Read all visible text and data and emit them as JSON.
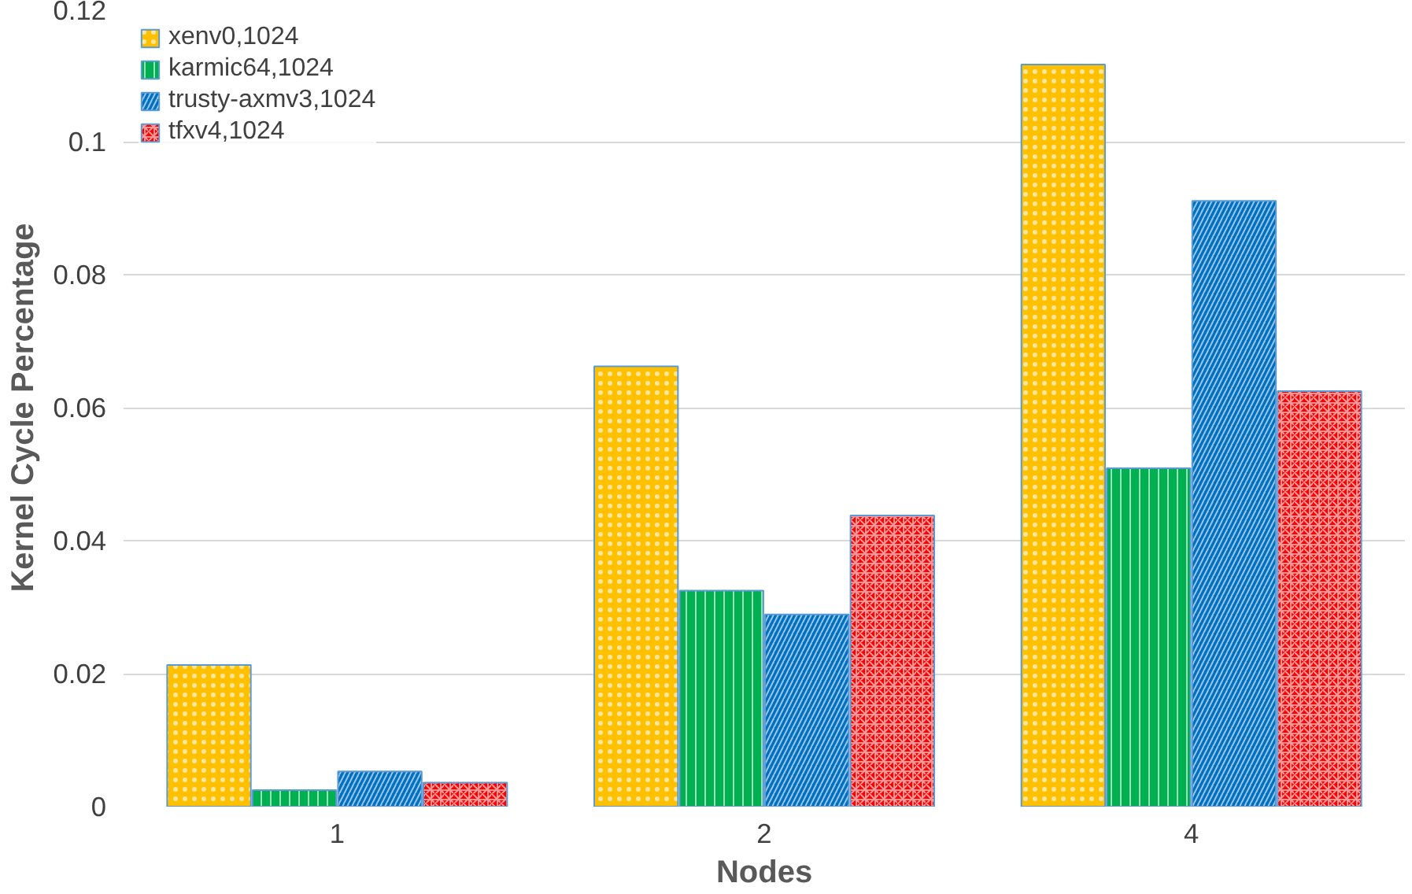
{
  "chart_data": {
    "type": "bar",
    "xlabel": "Nodes",
    "ylabel": "Kernel Cycle Percentage",
    "categories": [
      "1",
      "2",
      "4"
    ],
    "series": [
      {
        "name": "xenv0,1024",
        "color": "#ffc000",
        "values": [
          0.0213,
          0.0662,
          0.1116
        ]
      },
      {
        "name": "karmic64,1024",
        "color": "#00b050",
        "values": [
          0.0025,
          0.0325,
          0.0509
        ]
      },
      {
        "name": "trusty-axmv3,1024",
        "color": "#0070c0",
        "values": [
          0.0053,
          0.0289,
          0.0911
        ]
      },
      {
        "name": "tfxv4,1024",
        "color": "#ff0000",
        "values": [
          0.0036,
          0.0438,
          0.0625
        ]
      }
    ],
    "ylim": [
      0,
      0.12
    ],
    "yticks": [
      0,
      0.02,
      0.04,
      0.06,
      0.08,
      0.1,
      0.12
    ],
    "grid": "y",
    "legend": "top left"
  }
}
